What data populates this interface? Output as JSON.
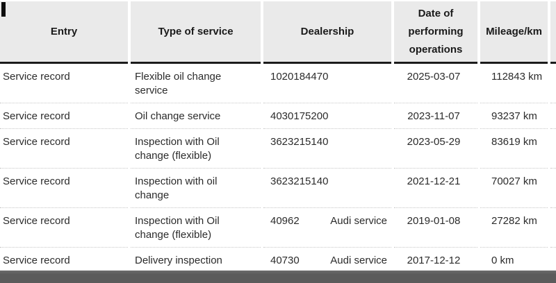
{
  "colors": {
    "header_bg": "#eaeaea",
    "header_border": "#1c1c1c",
    "divider": "#c6c6c6",
    "text": "#2b2b2b",
    "footer_bar": "#5b5b5b",
    "marker": "#0d0d0d",
    "page_bg": "#ffffff"
  },
  "table": {
    "columns": [
      {
        "label": "Entry"
      },
      {
        "label": "Type of service"
      },
      {
        "label": "Dealership"
      },
      {
        "label": "Date of performing operations"
      },
      {
        "label": "Mileage/km"
      }
    ],
    "rows": [
      {
        "entry": "Service record",
        "service_type": "Flexible oil change service",
        "dealership": "1020184470",
        "dealership_note": "",
        "date": "2025-03-07",
        "mileage": "112843 km"
      },
      {
        "entry": "Service record",
        "service_type": "Oil change service",
        "dealership": "4030175200",
        "dealership_note": "",
        "date": "2023-11-07",
        "mileage": "93237 km"
      },
      {
        "entry": "Service record",
        "service_type": "Inspection with Oil change (flexible)",
        "dealership": "3623215140",
        "dealership_note": "",
        "date": "2023-05-29",
        "mileage": "83619 km"
      },
      {
        "entry": "Service record",
        "service_type": "Inspection with oil change",
        "dealership": "3623215140",
        "dealership_note": "",
        "date": "2021-12-21",
        "mileage": "70027 km"
      },
      {
        "entry": "Service record",
        "service_type": "Inspection with Oil change (flexible)",
        "dealership": "40962",
        "dealership_note": "Audi service",
        "date": "2019-01-08",
        "mileage": "27282 km"
      },
      {
        "entry": "Service record",
        "service_type": "Delivery inspection",
        "dealership": "40730",
        "dealership_note": "Audi service",
        "date": "2017-12-12",
        "mileage": "0 km"
      }
    ]
  }
}
